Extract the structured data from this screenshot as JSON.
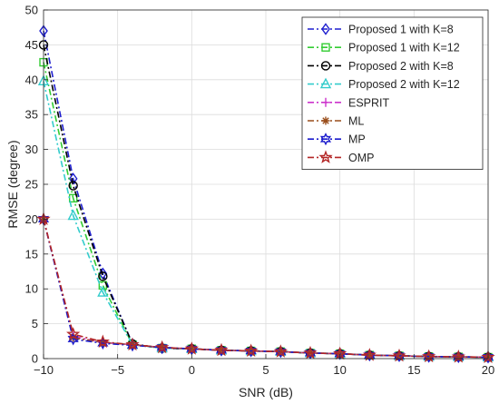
{
  "chart_data": {
    "type": "line",
    "title": "",
    "xlabel": "SNR (dB)",
    "ylabel": "RMSE (degree)",
    "xlim": [
      -10,
      20
    ],
    "ylim": [
      0,
      50
    ],
    "x_ticks": [
      -10,
      -5,
      0,
      5,
      10,
      15,
      20
    ],
    "y_ticks": [
      0,
      5,
      10,
      15,
      20,
      25,
      30,
      35,
      40,
      45,
      50
    ],
    "grid": true,
    "legend_position": "top-right",
    "x": [
      -10,
      -8,
      -6,
      -4,
      -2,
      0,
      2,
      4,
      6,
      8,
      10,
      12,
      14,
      16,
      18,
      20
    ],
    "series": [
      {
        "name": "Proposed 1 with K=8",
        "color": "#1f1fcf",
        "marker": "diamond",
        "values": [
          47.0,
          25.8,
          12.2,
          2.1,
          1.5,
          1.4,
          1.2,
          1.1,
          1.0,
          0.8,
          0.7,
          0.5,
          0.4,
          0.3,
          0.25,
          0.2
        ]
      },
      {
        "name": "Proposed 1 with K=12",
        "color": "#33cc33",
        "marker": "square",
        "values": [
          42.5,
          23.0,
          10.5,
          2.0,
          1.5,
          1.4,
          1.2,
          1.1,
          1.0,
          0.8,
          0.7,
          0.5,
          0.4,
          0.3,
          0.25,
          0.2
        ]
      },
      {
        "name": "Proposed 2 with K=8",
        "color": "#000000",
        "marker": "circle",
        "values": [
          45.0,
          24.8,
          11.8,
          2.1,
          1.5,
          1.4,
          1.2,
          1.1,
          1.0,
          0.8,
          0.7,
          0.5,
          0.4,
          0.3,
          0.25,
          0.2
        ]
      },
      {
        "name": "Proposed 2 with K=12",
        "color": "#33cccc",
        "marker": "triangle",
        "values": [
          39.8,
          20.5,
          9.5,
          2.0,
          1.5,
          1.4,
          1.2,
          1.1,
          1.0,
          0.8,
          0.7,
          0.5,
          0.4,
          0.3,
          0.25,
          0.2
        ]
      },
      {
        "name": "ESPRIT",
        "color": "#cc33cc",
        "marker": "plus",
        "values": [
          20.0,
          3.2,
          2.3,
          2.0,
          1.6,
          1.4,
          1.2,
          1.1,
          1.0,
          0.8,
          0.7,
          0.5,
          0.4,
          0.3,
          0.25,
          0.2
        ]
      },
      {
        "name": "ML",
        "color": "#994d1a",
        "marker": "asterisk",
        "values": [
          20.0,
          3.0,
          2.3,
          2.0,
          1.6,
          1.4,
          1.2,
          1.1,
          1.0,
          0.8,
          0.7,
          0.5,
          0.4,
          0.3,
          0.25,
          0.2
        ]
      },
      {
        "name": "MP",
        "color": "#1a1acc",
        "marker": "hexagram",
        "values": [
          20.0,
          2.8,
          2.2,
          1.9,
          1.6,
          1.4,
          1.2,
          1.1,
          1.0,
          0.8,
          0.7,
          0.5,
          0.4,
          0.3,
          0.25,
          0.2
        ]
      },
      {
        "name": "OMP",
        "color": "#b32626",
        "marker": "pentagram",
        "values": [
          20.0,
          3.5,
          2.4,
          2.0,
          1.6,
          1.4,
          1.2,
          1.1,
          1.0,
          0.8,
          0.7,
          0.5,
          0.4,
          0.3,
          0.25,
          0.2
        ]
      }
    ]
  }
}
